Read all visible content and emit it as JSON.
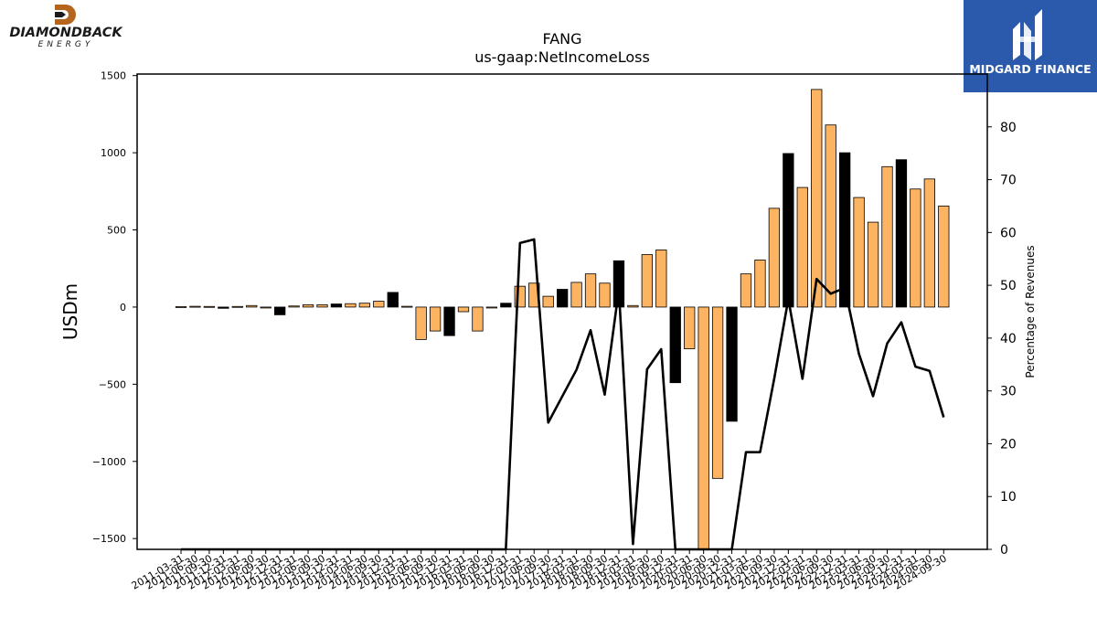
{
  "brand_left": {
    "name": "DIAMONDBACK",
    "sub": "ENERGY"
  },
  "brand_right": {
    "name": "MIDGARD FINANCE"
  },
  "colors": {
    "bar_positive": "#fdb462",
    "bar_highlight": "#000000",
    "line": "#000000",
    "brand_right_bg": "#2b5aad"
  },
  "chart_data": {
    "type": "bar",
    "title": "FANG",
    "subtitle": "us-gaap:NetIncomeLoss",
    "ylabel": "USDm",
    "ylabel_right": "Percentage of Revenues",
    "ylim": [
      -1570,
      1510
    ],
    "ylim_right": [
      0,
      90
    ],
    "yticks": [
      -1500,
      -1000,
      -500,
      0,
      500,
      1000,
      1500
    ],
    "yticks_right": [
      0,
      10,
      20,
      30,
      40,
      50,
      60,
      70,
      80
    ],
    "grid": false,
    "categories": [
      "2011-03-31",
      "2011-06-30",
      "2011-09-30",
      "2011-12-31",
      "2012-03-31",
      "2012-06-30",
      "2012-09-30",
      "2012-12-31",
      "2013-03-31",
      "2013-06-30",
      "2013-09-30",
      "2013-12-31",
      "2014-03-31",
      "2014-06-30",
      "2014-09-30",
      "2014-12-31",
      "2015-03-31",
      "2015-06-30",
      "2015-09-30",
      "2015-12-31",
      "2016-03-31",
      "2016-06-30",
      "2016-09-30",
      "2016-12-31",
      "2017-03-31",
      "2017-06-30",
      "2017-09-30",
      "2017-12-31",
      "2018-03-31",
      "2018-06-30",
      "2018-09-30",
      "2018-12-31",
      "2019-03-31",
      "2019-06-30",
      "2019-09-30",
      "2019-12-31",
      "2020-03-31",
      "2020-06-30",
      "2020-09-30",
      "2020-12-31",
      "2021-03-31",
      "2021-06-30",
      "2021-09-30",
      "2021-12-31",
      "2022-03-31",
      "2022-06-30",
      "2022-09-30",
      "2022-12-31",
      "2023-03-31",
      "2023-06-30",
      "2023-09-30",
      "2023-12-31",
      "2024-03-31",
      "2024-06-30",
      "2024-09-30"
    ],
    "series": [
      {
        "values": [
          3,
          5,
          4,
          -8,
          4,
          10,
          -3,
          -50,
          7,
          15,
          15,
          20,
          22,
          25,
          38,
          95,
          5,
          -210,
          -155,
          -185,
          -30,
          -155,
          -5,
          25,
          135,
          155,
          70,
          115,
          160,
          215,
          155,
          300,
          10,
          340,
          370,
          -490,
          -270,
          -1570,
          -1110,
          -740,
          215,
          305,
          640,
          995,
          775,
          1410,
          1180,
          1000,
          710,
          550,
          910,
          955,
          765,
          830,
          655
        ],
        "highlight": [
          false,
          false,
          false,
          true,
          false,
          false,
          false,
          true,
          false,
          false,
          false,
          true,
          false,
          false,
          false,
          true,
          false,
          false,
          false,
          true,
          false,
          false,
          false,
          true,
          false,
          false,
          false,
          true,
          false,
          false,
          false,
          true,
          false,
          false,
          false,
          true,
          false,
          false,
          false,
          true,
          false,
          false,
          false,
          true,
          false,
          false,
          false,
          true,
          false,
          false,
          false,
          true,
          false,
          false,
          false
        ]
      },
      {
        "axis": "right",
        "values": [
          0,
          0,
          0,
          0,
          0,
          0,
          0,
          0,
          0,
          0,
          0,
          0,
          0,
          0,
          0,
          0,
          0,
          0,
          0,
          0,
          0,
          0,
          0,
          0,
          58,
          58.7,
          24,
          29,
          34,
          41.5,
          29.3,
          49.2,
          1,
          34.1,
          37.9,
          0,
          0,
          0,
          0,
          0,
          18.4,
          18.4,
          32.3,
          47.4,
          32.3,
          51.2,
          48.4,
          49.5,
          37,
          29,
          39,
          43,
          34.6,
          33.8,
          25
        ]
      }
    ]
  }
}
